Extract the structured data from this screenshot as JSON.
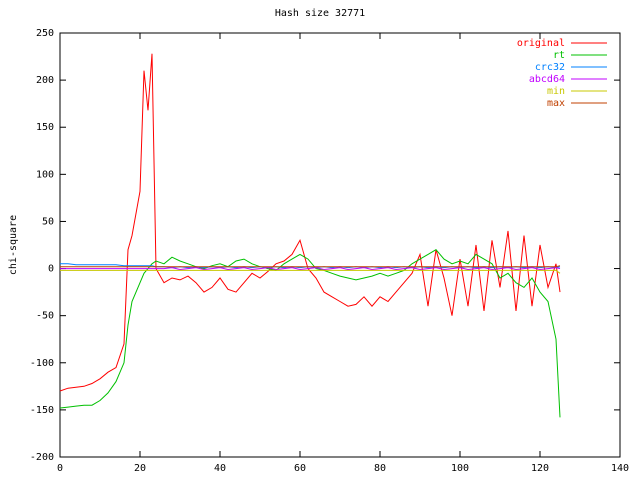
{
  "chart_data": {
    "type": "line",
    "title": "Hash size 32771",
    "ylabel": "chi-square",
    "x": [
      0,
      2,
      4,
      6,
      8,
      10,
      12,
      14,
      16,
      17,
      18,
      20,
      21,
      22,
      23,
      24,
      26,
      28,
      30,
      32,
      34,
      36,
      38,
      40,
      42,
      44,
      46,
      48,
      50,
      52,
      54,
      56,
      58,
      60,
      62,
      64,
      66,
      68,
      70,
      72,
      74,
      76,
      78,
      80,
      82,
      84,
      86,
      88,
      90,
      92,
      94,
      96,
      98,
      100,
      102,
      104,
      106,
      108,
      110,
      112,
      114,
      116,
      118,
      120,
      122,
      124,
      125
    ],
    "series": [
      {
        "name": "original",
        "color": "#ff0000",
        "values": [
          -130,
          -127,
          -126,
          -125,
          -122,
          -117,
          -110,
          -105,
          -80,
          20,
          35,
          82,
          210,
          168,
          228,
          0,
          -15,
          -10,
          -12,
          -8,
          -15,
          -25,
          -20,
          -10,
          -22,
          -25,
          -15,
          -5,
          -10,
          -3,
          5,
          8,
          15,
          30,
          0,
          -10,
          -25,
          -30,
          -35,
          -40,
          -38,
          -30,
          -40,
          -30,
          -35,
          -25,
          -15,
          -5,
          15,
          -40,
          20,
          -10,
          -50,
          10,
          -40,
          25,
          -45,
          30,
          -20,
          40,
          -45,
          35,
          -40,
          25,
          -20,
          5,
          -25
        ]
      },
      {
        "name": "rt",
        "color": "#00c000",
        "values": [
          -148,
          -147,
          -146,
          -145,
          -145,
          -140,
          -132,
          -120,
          -100,
          -60,
          -35,
          -15,
          -5,
          0,
          5,
          8,
          5,
          12,
          8,
          5,
          2,
          0,
          3,
          5,
          2,
          8,
          10,
          5,
          2,
          0,
          -2,
          5,
          10,
          15,
          10,
          0,
          -2,
          -5,
          -8,
          -10,
          -12,
          -10,
          -8,
          -5,
          -8,
          -5,
          -2,
          5,
          10,
          15,
          20,
          10,
          5,
          8,
          5,
          15,
          10,
          5,
          -10,
          -5,
          -15,
          -20,
          -10,
          -25,
          -35,
          -75,
          -158
        ]
      },
      {
        "name": "crc32",
        "color": "#0080ff",
        "values": [
          5,
          5,
          4,
          4,
          4,
          4,
          4,
          4,
          3,
          3,
          3,
          3,
          3,
          3,
          3,
          2,
          2,
          1,
          2,
          1,
          2,
          1,
          2,
          1,
          2,
          1,
          2,
          1,
          2,
          1,
          2,
          1,
          2,
          1,
          2,
          1,
          2,
          1,
          2,
          1,
          2,
          1,
          2,
          1,
          2,
          1,
          2,
          1,
          2,
          1,
          2,
          1,
          2,
          1,
          2,
          1,
          2,
          1,
          2,
          1,
          2,
          1,
          2,
          1,
          2,
          1,
          2
        ]
      },
      {
        "name": "abcd64",
        "color": "#c000ff",
        "values": [
          0,
          0,
          0,
          0,
          0,
          0,
          0,
          0,
          0,
          0,
          0,
          0,
          0,
          0,
          0,
          0,
          0,
          1,
          -1,
          0,
          1,
          -1,
          0,
          1,
          -1,
          0,
          1,
          -1,
          0,
          1,
          -1,
          0,
          1,
          -1,
          0,
          1,
          -1,
          0,
          1,
          -1,
          0,
          1,
          -1,
          0,
          1,
          -1,
          0,
          1,
          -1,
          0,
          1,
          -1,
          0,
          1,
          -1,
          0,
          1,
          -1,
          0,
          1,
          -1,
          0,
          1,
          -1,
          0,
          1,
          0
        ]
      },
      {
        "name": "min",
        "color": "#c8c800",
        "values": [
          -2,
          -2,
          -2,
          -2,
          -2,
          -2,
          -2,
          -2,
          -2,
          -2,
          -2,
          -2,
          -2,
          -2,
          -2,
          -2,
          -2,
          -2,
          -2,
          -2,
          -2,
          -2,
          -2,
          -2,
          -2,
          -2,
          -2,
          -2,
          -2,
          -2,
          -2,
          -2,
          -2,
          -2,
          -2,
          -2,
          -2,
          -2,
          -2,
          -2,
          -2,
          -2,
          -2,
          -2,
          -2,
          -2,
          -2,
          -2,
          -2,
          -2,
          -2,
          -2,
          -2,
          -2,
          -2,
          -2,
          -2,
          -2,
          -2,
          -2,
          -2,
          -2,
          -2,
          -2,
          -2,
          -2,
          -5
        ]
      },
      {
        "name": "max",
        "color": "#c04000",
        "values": [
          2,
          2,
          2,
          2,
          2,
          2,
          2,
          2,
          2,
          2,
          2,
          2,
          2,
          2,
          2,
          2,
          2,
          2,
          2,
          2,
          2,
          2,
          2,
          2,
          2,
          2,
          2,
          2,
          2,
          2,
          2,
          2,
          2,
          2,
          2,
          2,
          2,
          2,
          2,
          2,
          2,
          2,
          2,
          2,
          2,
          2,
          2,
          2,
          2,
          2,
          2,
          2,
          2,
          2,
          2,
          2,
          2,
          2,
          2,
          2,
          2,
          2,
          2,
          2,
          2,
          2,
          3
        ]
      }
    ],
    "xlim": [
      0,
      140
    ],
    "xticks": [
      0,
      20,
      40,
      60,
      80,
      100,
      120,
      140
    ],
    "ylim": [
      -200,
      250
    ],
    "yticks": [
      -200,
      -150,
      -100,
      -50,
      0,
      50,
      100,
      150,
      200,
      250
    ],
    "legend": "top-right"
  }
}
